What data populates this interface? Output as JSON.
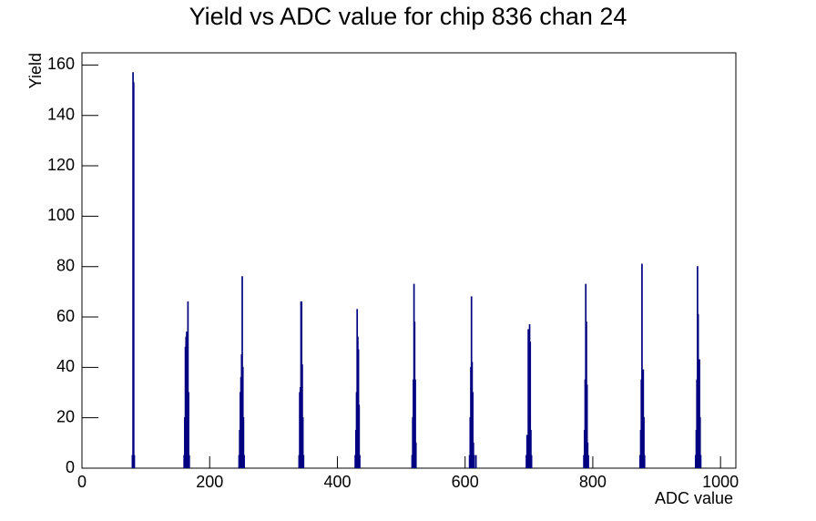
{
  "chart_data": {
    "type": "histogram",
    "title": "Yield vs ADC value for chip 836 chan 24",
    "x_label": "ADC value",
    "y_label": "Yield",
    "color": "#000080",
    "xlim": [
      0,
      1024
    ],
    "ylim": [
      0,
      164.85
    ],
    "xticks": [
      0,
      200,
      400,
      600,
      800,
      1000
    ],
    "yticks": [
      0,
      20,
      40,
      60,
      80,
      100,
      120,
      140,
      160
    ],
    "x": [
      79,
      80,
      81,
      82,
      160,
      161,
      162,
      163,
      164,
      165,
      166,
      167,
      168,
      246,
      247,
      248,
      249,
      250,
      251,
      252,
      253,
      254,
      340,
      341,
      342,
      343,
      344,
      345,
      346,
      347,
      428,
      429,
      430,
      431,
      432,
      433,
      434,
      435,
      517,
      518,
      519,
      520,
      521,
      522,
      523,
      607,
      608,
      609,
      610,
      611,
      612,
      613,
      614,
      617,
      696,
      697,
      698,
      699,
      700,
      701,
      702,
      703,
      704,
      786,
      787,
      788,
      789,
      790,
      791,
      792,
      793,
      874,
      875,
      876,
      877,
      878,
      879,
      880,
      881,
      961,
      962,
      963,
      964,
      965,
      966,
      967,
      968,
      969
    ],
    "values": [
      5,
      157,
      153,
      5,
      5,
      20,
      48,
      52,
      54,
      27,
      66,
      30,
      5,
      5,
      15,
      30,
      36,
      45,
      76,
      40,
      20,
      5,
      5,
      30,
      32,
      66,
      66,
      41,
      20,
      5,
      5,
      15,
      30,
      63,
      52,
      47,
      25,
      5,
      5,
      20,
      35,
      73,
      58,
      35,
      10,
      5,
      20,
      40,
      68,
      42,
      30,
      10,
      5,
      5,
      5,
      13,
      5,
      55,
      20,
      57,
      50,
      15,
      5,
      5,
      15,
      35,
      73,
      58,
      33,
      10,
      5,
      5,
      15,
      35,
      81,
      35,
      39,
      20,
      5,
      5,
      15,
      35,
      80,
      61,
      30,
      43,
      20,
      5
    ]
  }
}
